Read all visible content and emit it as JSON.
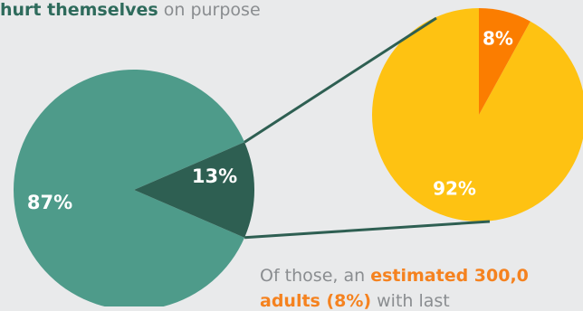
{
  "caption_top": {
    "bold": "hurt themselves",
    "rest": " on purpose"
  },
  "caption_bottom": {
    "prefix": "Of those, an ",
    "bold": "estimated 300,0",
    "line2_bold": "adults (8%)",
    "line2_rest": " with last"
  },
  "colors": {
    "background": "#e9eaeb",
    "main_large": "#4e9b8a",
    "main_small": "#2e5f52",
    "detail_large": "#fec212",
    "detail_small": "#fb7d00",
    "connector": "#2e5f52"
  },
  "chart_data": [
    {
      "type": "pie",
      "slices": [
        {
          "label": "87%",
          "value": 87
        },
        {
          "label": "13%",
          "value": 13
        }
      ]
    },
    {
      "type": "pie",
      "slices": [
        {
          "label": "92%",
          "value": 92
        },
        {
          "label": "8%",
          "value": 8
        }
      ]
    }
  ]
}
